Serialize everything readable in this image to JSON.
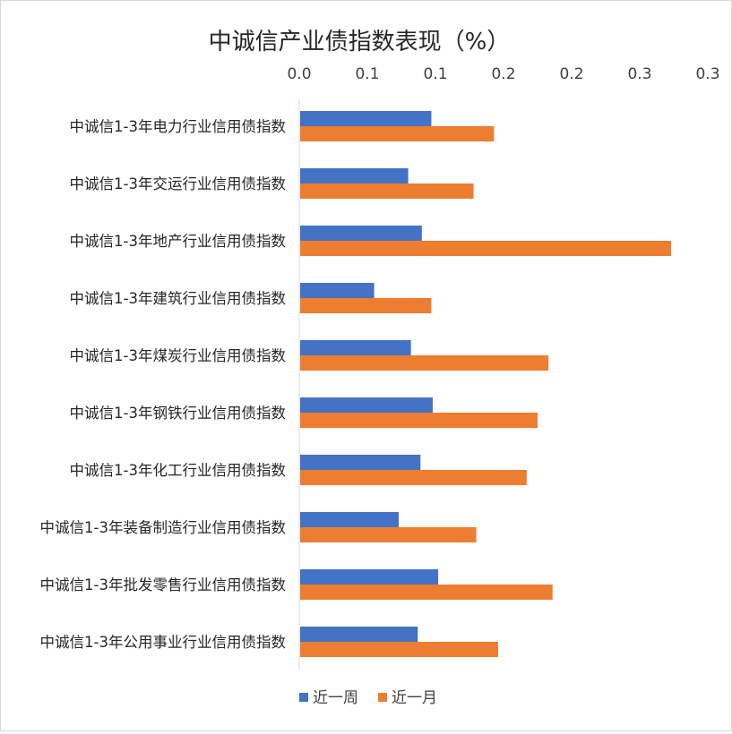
{
  "chart_data": {
    "type": "bar",
    "orientation": "horizontal",
    "title": "中诚信产业债指数表现（%）",
    "x_axis_position": "top",
    "x_ticks": [
      "0.0",
      "0.1",
      "0.1",
      "0.2",
      "0.2",
      "0.3",
      "0.3"
    ],
    "xlim": [
      0,
      0.3
    ],
    "grid": false,
    "legend": "bottom",
    "categories": [
      "中诚信1-3年电力行业信用债指数",
      "中诚信1-3年交运行业信用债指数",
      "中诚信1-3年地产行业信用债指数",
      "中诚信1-3年建筑行业信用债指数",
      "中诚信1-3年煤炭行业信用债指数",
      "中诚信1-3年钢铁行业信用债指数",
      "中诚信1-3年化工行业信用债指数",
      "中诚信1-3年装备制造行业信用债指数",
      "中诚信1-3年批发零售行业信用债指数",
      "中诚信1-3年公用事业行业信用债指数"
    ],
    "series": [
      {
        "name": "近一周",
        "color": "#4472C4",
        "values": [
          0.097,
          0.08,
          0.09,
          0.055,
          0.082,
          0.098,
          0.089,
          0.073,
          0.102,
          0.087
        ]
      },
      {
        "name": "近一月",
        "color": "#ED7D31",
        "values": [
          0.143,
          0.128,
          0.273,
          0.097,
          0.183,
          0.175,
          0.167,
          0.13,
          0.186,
          0.146
        ]
      }
    ]
  }
}
